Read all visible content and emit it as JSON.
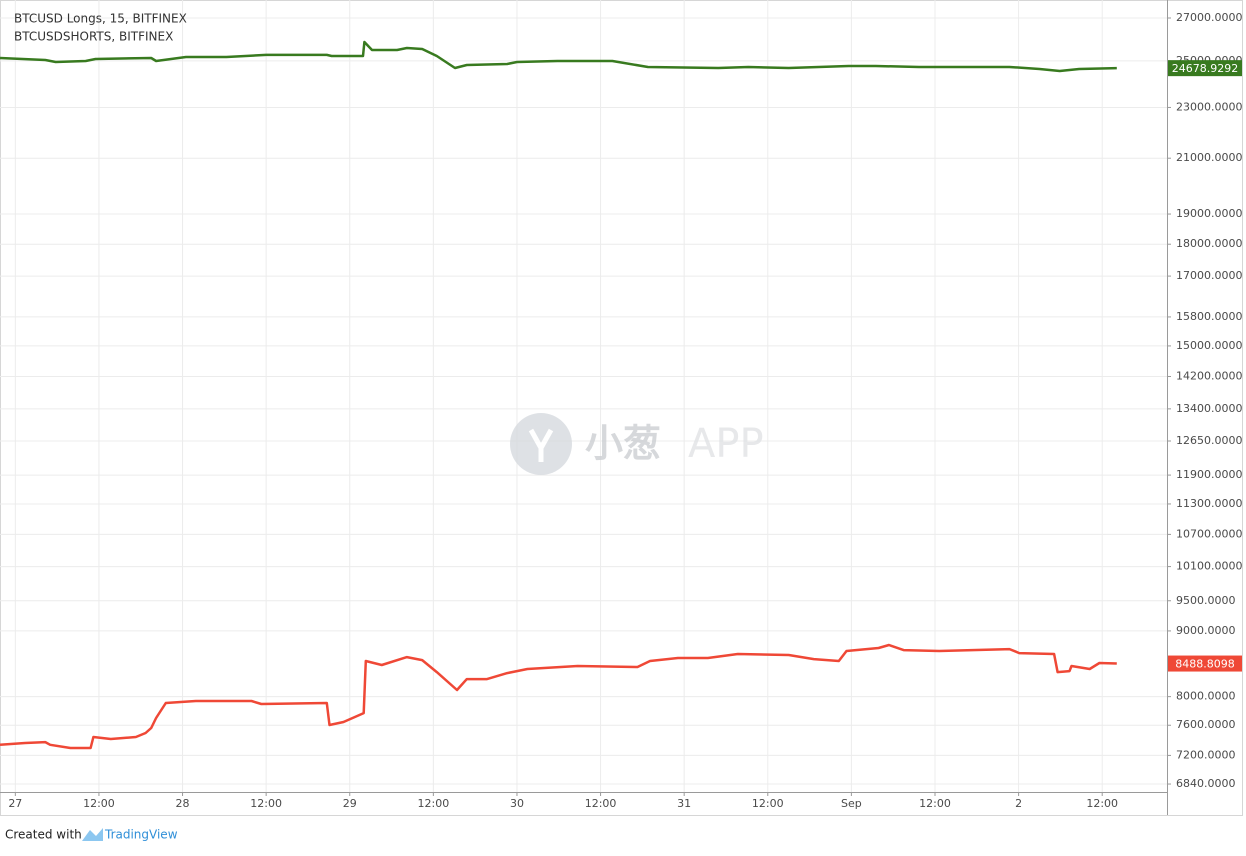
{
  "chart_data": {
    "type": "line",
    "log_scale_y": true,
    "grid": true,
    "watermark": [
      "小葱",
      "APP"
    ],
    "footer": {
      "text": "Created with",
      "brand": "TradingView"
    },
    "xlim": [
      -2.2,
      165.3
    ],
    "xticks": [
      {
        "value": 0,
        "label": "27"
      },
      {
        "value": 12,
        "label": "12:00"
      },
      {
        "value": 24,
        "label": "28"
      },
      {
        "value": 36,
        "label": "12:00"
      },
      {
        "value": 48,
        "label": "29"
      },
      {
        "value": 60,
        "label": "12:00"
      },
      {
        "value": 72,
        "label": "30"
      },
      {
        "value": 84,
        "label": "12:00"
      },
      {
        "value": 96,
        "label": "31"
      },
      {
        "value": 108,
        "label": "12:00"
      },
      {
        "value": 120,
        "label": "Sep"
      },
      {
        "value": 132,
        "label": "12:00"
      },
      {
        "value": 144,
        "label": "2"
      },
      {
        "value": 156,
        "label": "12:00"
      }
    ],
    "ylim": [
      6743,
      27885
    ],
    "yticks": [
      {
        "value": 27000,
        "label": "27000.0000"
      },
      {
        "value": 25000,
        "label": "25000.0000"
      },
      {
        "value": 23000,
        "label": "23000.0000"
      },
      {
        "value": 21000,
        "label": "21000.0000"
      },
      {
        "value": 19000,
        "label": "19000.0000"
      },
      {
        "value": 18000,
        "label": "18000.0000"
      },
      {
        "value": 17000,
        "label": "17000.0000"
      },
      {
        "value": 15800,
        "label": "15800.0000"
      },
      {
        "value": 15000,
        "label": "15000.0000"
      },
      {
        "value": 14200,
        "label": "14200.0000"
      },
      {
        "value": 13400,
        "label": "13400.0000"
      },
      {
        "value": 12650,
        "label": "12650.0000"
      },
      {
        "value": 11900,
        "label": "11900.0000"
      },
      {
        "value": 11300,
        "label": "11300.0000"
      },
      {
        "value": 10700,
        "label": "10700.0000"
      },
      {
        "value": 10100,
        "label": "10100.0000"
      },
      {
        "value": 9500,
        "label": "9500.0000"
      },
      {
        "value": 9000,
        "label": "9000.0000"
      },
      {
        "value": 8000,
        "label": "8000.0000"
      },
      {
        "value": 7600,
        "label": "7600.0000"
      },
      {
        "value": 7200,
        "label": "7200.0000"
      },
      {
        "value": 6840,
        "label": "6840.0000"
      }
    ],
    "series": [
      {
        "name": "BTCUSD Longs, 15, BITFINEX",
        "color": "#387a1f",
        "x": [
          -2.2,
          4.3,
          5.8,
          10.1,
          11.5,
          19.5,
          20.2,
          24.5,
          30.3,
          36.0,
          44.7,
          45.4,
          49.9,
          50.1,
          51.2,
          54.8,
          56.2,
          58.4,
          60.5,
          63.1,
          64.8,
          70.6,
          72.0,
          77.8,
          85.7,
          90.8,
          100.9,
          105.2,
          111.0,
          119.6,
          123.5,
          129.7,
          142.7,
          147.0,
          149.9,
          152.7,
          158.1
        ],
        "values": [
          25132,
          25042,
          24953,
          24997,
          25087,
          25132,
          24997,
          25178,
          25178,
          25270,
          25270,
          25224,
          25224,
          25864,
          25496,
          25496,
          25587,
          25541,
          25224,
          24686,
          24819,
          24864,
          24953,
          24997,
          24997,
          24730,
          24686,
          24730,
          24686,
          24775,
          24775,
          24730,
          24730,
          24641,
          24553,
          24641,
          24678.9292
        ]
      },
      {
        "name": "BTCUSDSHORTS, BITFINEX",
        "color": "#ef4836",
        "x": [
          -2.2,
          1.4,
          4.3,
          5.0,
          7.9,
          10.8,
          11.2,
          13.7,
          17.3,
          18.7,
          19.5,
          20.2,
          21.6,
          25.9,
          33.9,
          35.3,
          44.7,
          45.1,
          47.1,
          50.0,
          50.3,
          52.6,
          56.2,
          58.4,
          60.5,
          63.4,
          64.8,
          67.7,
          70.6,
          73.5,
          80.7,
          89.3,
          91.1,
          95.1,
          99.4,
          103.7,
          111.0,
          114.6,
          118.2,
          119.3,
          123.9,
          125.4,
          127.5,
          132.6,
          142.7,
          144.1,
          149.1,
          149.6,
          151.3,
          151.6,
          154.2,
          155.6,
          158.1
        ],
        "values": [
          7338,
          7362,
          7374,
          7338,
          7296,
          7296,
          7441,
          7415,
          7441,
          7495,
          7562,
          7699,
          7909,
          7937,
          7937,
          7895,
          7909,
          7603,
          7644,
          7768,
          8527,
          8466,
          8588,
          8542,
          8360,
          8095,
          8256,
          8256,
          8345,
          8406,
          8452,
          8437,
          8527,
          8573,
          8573,
          8635,
          8620,
          8557,
          8527,
          8682,
          8728,
          8775,
          8696,
          8682,
          8712,
          8649,
          8635,
          8360,
          8375,
          8452,
          8406,
          8497,
          8488.8098
        ]
      }
    ]
  }
}
